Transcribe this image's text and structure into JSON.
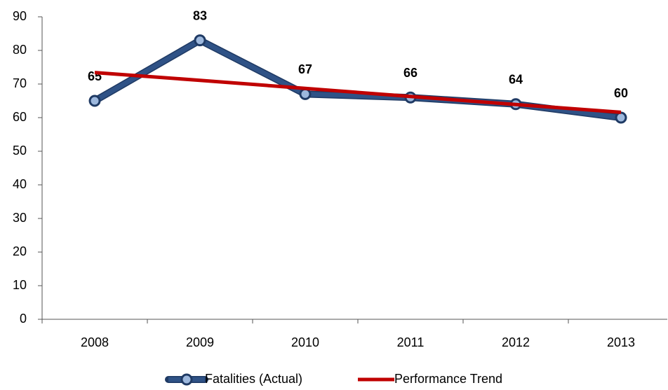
{
  "chart_data": {
    "type": "line",
    "categories": [
      "2008",
      "2009",
      "2010",
      "2011",
      "2012",
      "2013"
    ],
    "series": [
      {
        "name": "Fatalities (Actual)",
        "color": "#2f5286",
        "values": [
          65,
          83,
          67,
          66,
          64,
          60
        ]
      },
      {
        "name": "Performance Trend",
        "color": "#c00000",
        "values": [
          73.4,
          71.1,
          68.7,
          66.3,
          63.9,
          61.6
        ]
      }
    ],
    "ylim": [
      0,
      90
    ],
    "yticks": [
      0,
      10,
      20,
      30,
      40,
      50,
      60,
      70,
      80,
      90
    ],
    "grid": false,
    "legend": "bottom"
  }
}
